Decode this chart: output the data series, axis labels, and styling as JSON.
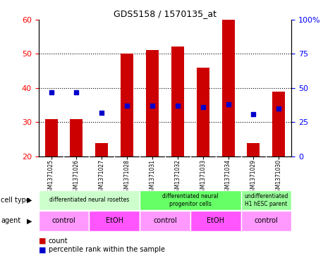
{
  "title": "GDS5158 / 1570135_at",
  "samples": [
    "GSM1371025",
    "GSM1371026",
    "GSM1371027",
    "GSM1371028",
    "GSM1371031",
    "GSM1371032",
    "GSM1371033",
    "GSM1371034",
    "GSM1371029",
    "GSM1371030"
  ],
  "counts": [
    31,
    31,
    24,
    50,
    51,
    52,
    46,
    60,
    24,
    39
  ],
  "percentile_ranks": [
    47,
    47,
    32,
    37,
    37,
    37,
    36,
    38,
    31,
    35
  ],
  "ylim_left": [
    20,
    60
  ],
  "ylim_right": [
    0,
    100
  ],
  "yticks_left": [
    20,
    30,
    40,
    50,
    60
  ],
  "yticks_right": [
    0,
    25,
    50,
    75,
    100
  ],
  "ytick_labels_right": [
    "0",
    "25",
    "50",
    "75",
    "100%"
  ],
  "bar_color": "#cc0000",
  "dot_color": "#0000cc",
  "bar_width": 0.5,
  "dot_size": 25,
  "cell_type_groups": [
    {
      "label": "differentiated neural rosettes",
      "start": 0,
      "end": 3,
      "color": "#ccffcc"
    },
    {
      "label": "differentiated neural\nprogenitor cells",
      "start": 4,
      "end": 7,
      "color": "#66ff66"
    },
    {
      "label": "undifferentiated\nH1 hESC parent",
      "start": 8,
      "end": 9,
      "color": "#99ff99"
    }
  ],
  "agent_groups": [
    {
      "label": "control",
      "start": 0,
      "end": 1,
      "color": "#ff99ff"
    },
    {
      "label": "EtOH",
      "start": 2,
      "end": 3,
      "color": "#ff55ff"
    },
    {
      "label": "control",
      "start": 4,
      "end": 5,
      "color": "#ff99ff"
    },
    {
      "label": "EtOH",
      "start": 6,
      "end": 7,
      "color": "#ff55ff"
    },
    {
      "label": "control",
      "start": 8,
      "end": 9,
      "color": "#ff99ff"
    }
  ],
  "bg_color": "#cccccc",
  "plot_bg": "#ffffff",
  "legend_count_color": "#cc0000",
  "legend_dot_color": "#0000cc",
  "base_value": 20,
  "left_label_color": "red",
  "right_label_color": "blue"
}
